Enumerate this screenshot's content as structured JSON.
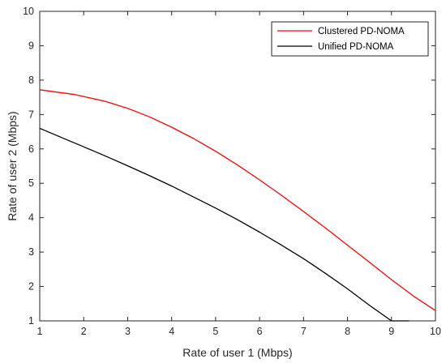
{
  "chart_data": {
    "type": "line",
    "title": "",
    "xlabel": "Rate of user 1 (Mbps)",
    "ylabel": "Rate of user 2 (Mbps)",
    "xlim": [
      1,
      10
    ],
    "ylim": [
      1,
      10
    ],
    "xticks": [
      "1",
      "2",
      "3",
      "4",
      "5",
      "6",
      "7",
      "8",
      "9",
      "10"
    ],
    "yticks": [
      "1",
      "2",
      "3",
      "4",
      "5",
      "6",
      "7",
      "8",
      "9",
      "10"
    ],
    "grid": false,
    "legend_position": "top-right",
    "series": [
      {
        "name": "Clustered PD-NOMA",
        "color": "#ff0000",
        "x": [
          1.0,
          1.8,
          2.5,
          3.0,
          3.5,
          4.0,
          4.5,
          5.0,
          5.5,
          6.0,
          6.5,
          7.0,
          7.5,
          8.0,
          8.5,
          9.0,
          9.5,
          10.0
        ],
        "y": [
          7.72,
          7.58,
          7.38,
          7.18,
          6.93,
          6.63,
          6.3,
          5.93,
          5.53,
          5.1,
          4.65,
          4.18,
          3.7,
          3.2,
          2.7,
          2.2,
          1.72,
          1.3
        ]
      },
      {
        "name": "Unified PD-NOMA",
        "color": "#000000",
        "x": [
          1.0,
          1.5,
          2.0,
          2.5,
          3.0,
          3.5,
          4.0,
          4.5,
          5.0,
          5.5,
          6.0,
          6.5,
          7.0,
          7.5,
          8.0,
          8.5,
          9.0,
          9.4
        ],
        "y": [
          6.6,
          6.33,
          6.06,
          5.79,
          5.51,
          5.22,
          4.92,
          4.6,
          4.28,
          3.94,
          3.58,
          3.2,
          2.81,
          2.38,
          1.93,
          1.45,
          0.97,
          1.0
        ]
      }
    ]
  }
}
